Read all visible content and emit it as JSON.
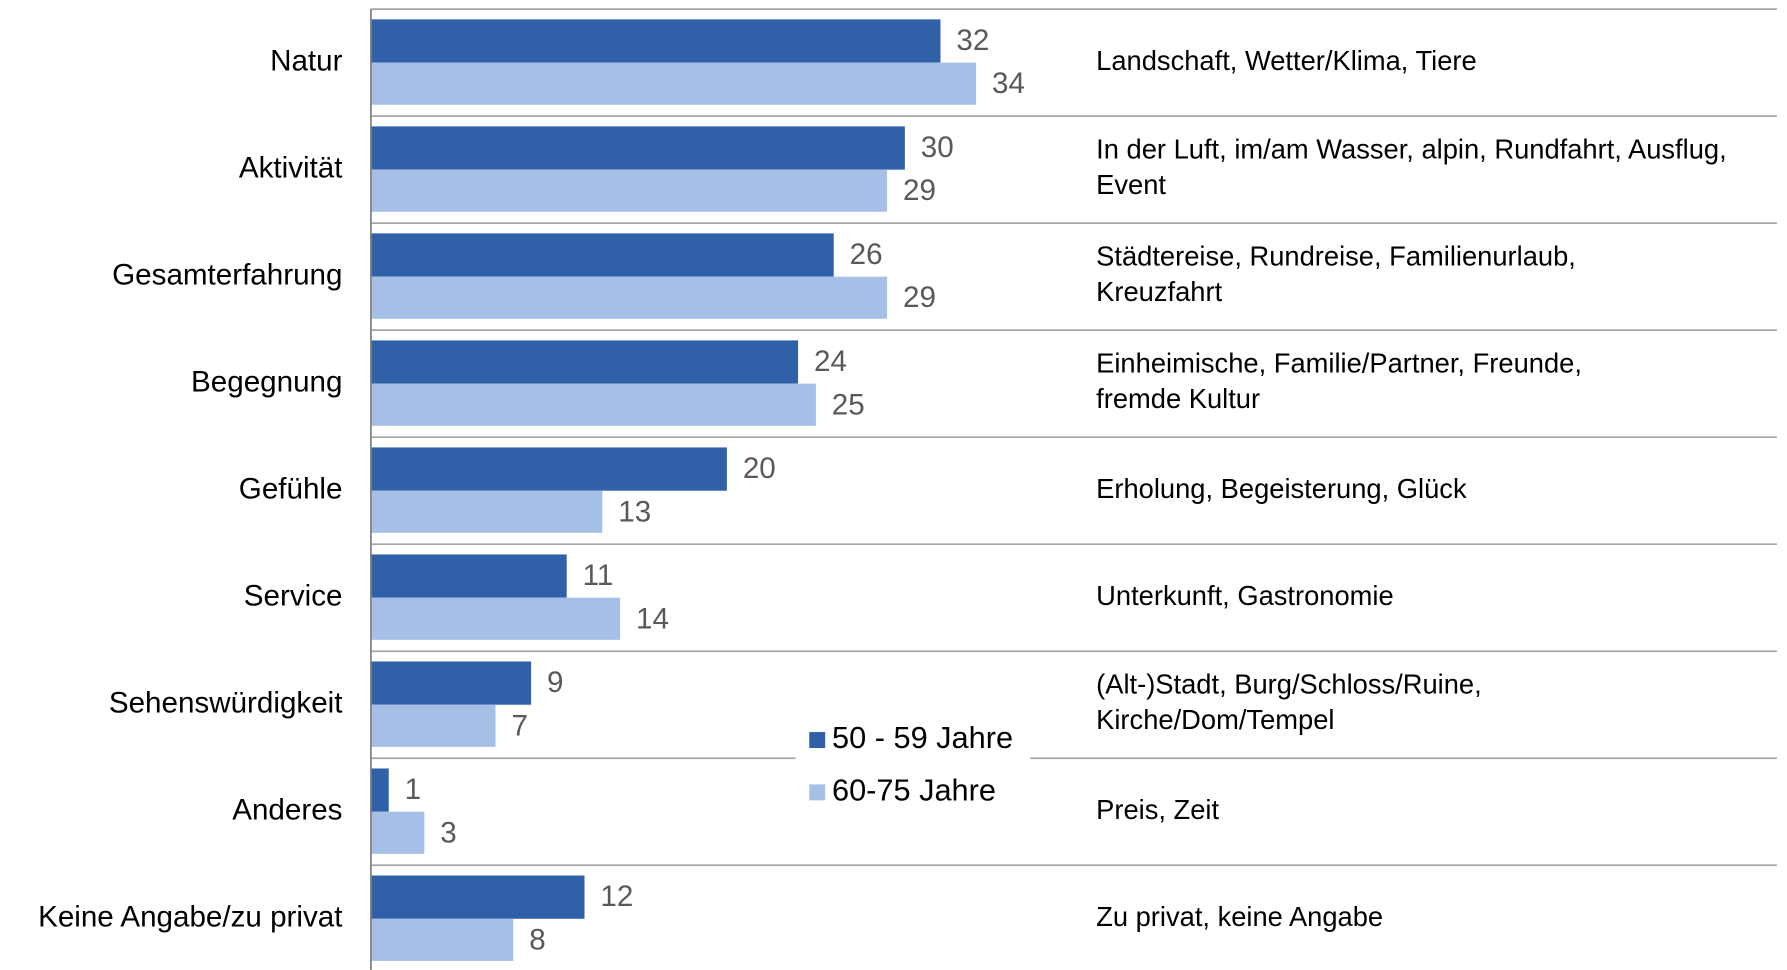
{
  "chart_data": {
    "type": "bar",
    "orientation": "horizontal",
    "categories": [
      "Natur",
      "Aktivität",
      "Gesamterfahrung",
      "Begegnung",
      "Gefühle",
      "Service",
      "Sehenswürdigkeit",
      "Anderes",
      "Keine Angabe/zu privat"
    ],
    "series": [
      {
        "name": "50 - 59 Jahre",
        "color": "#3060a8",
        "values": [
          32,
          30,
          26,
          24,
          20,
          11,
          9,
          1,
          12
        ]
      },
      {
        "name": "60-75 Jahre",
        "color": "#a5bfe6",
        "values": [
          34,
          29,
          29,
          25,
          13,
          14,
          7,
          3,
          8
        ]
      }
    ],
    "descriptions": [
      [
        "Landschaft, Wetter/Klima, Tiere"
      ],
      [
        "In der Luft, im/am Wasser, alpin, Rundfahrt, Ausflug,",
        "Event"
      ],
      [
        "Städtereise, Rundreise, Familienurlaub,",
        "Kreuzfahrt"
      ],
      [
        "Einheimische, Familie/Partner, Freunde,",
        "fremde Kultur"
      ],
      [
        "Erholung, Begeisterung, Glück"
      ],
      [
        "Unterkunft, Gastronomie"
      ],
      [
        "(Alt-)Stadt, Burg/Schloss/Ruine,",
        "Kirche/Dom/Tempel"
      ],
      [
        "Preis, Zeit"
      ],
      [
        "Zu privat, keine Angabe"
      ]
    ],
    "xlim": [
      0,
      79
    ]
  }
}
